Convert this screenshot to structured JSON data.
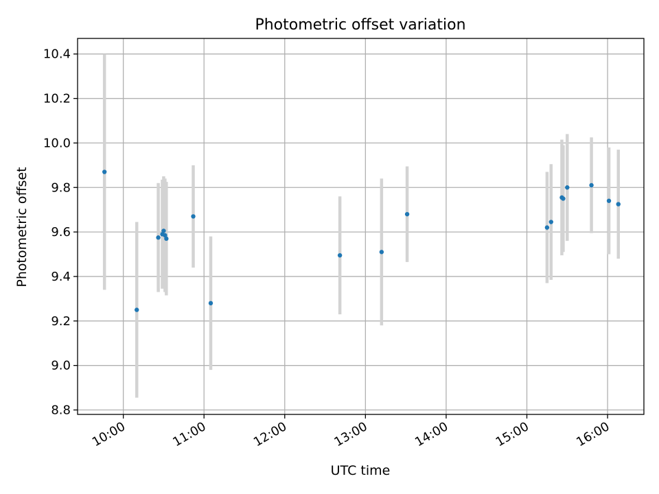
{
  "chart_data": {
    "type": "scatter",
    "title": "Photometric offset variation",
    "xlabel": "UTC time",
    "ylabel": "Photometric offset",
    "xlim": [
      "09:26",
      "16:27"
    ],
    "ylim": [
      8.78,
      10.47
    ],
    "x_ticks": [
      "10:00",
      "11:00",
      "12:00",
      "13:00",
      "14:00",
      "15:00",
      "16:00"
    ],
    "y_ticks": [
      "8.8",
      "9.0",
      "9.2",
      "9.4",
      "9.6",
      "9.8",
      "10.0",
      "10.2",
      "10.4"
    ],
    "grid": true,
    "colors": {
      "points": "#1f77b4",
      "errorbars": "#d3d3d3",
      "grid": "#b0b0b0"
    },
    "points": [
      {
        "time": "09:46",
        "y": 9.87,
        "err": 0.53
      },
      {
        "time": "10:10",
        "y": 9.25,
        "err": 0.395
      },
      {
        "time": "10:26",
        "y": 9.575,
        "err": 0.245
      },
      {
        "time": "10:29",
        "y": 9.59,
        "err": 0.245
      },
      {
        "time": "10:30",
        "y": 9.605,
        "err": 0.245
      },
      {
        "time": "10:31",
        "y": 9.585,
        "err": 0.255
      },
      {
        "time": "10:32",
        "y": 9.57,
        "err": 0.255
      },
      {
        "time": "10:52",
        "y": 9.67,
        "err": 0.23
      },
      {
        "time": "11:05",
        "y": 9.28,
        "err": 0.3
      },
      {
        "time": "12:41",
        "y": 9.495,
        "err": 0.265
      },
      {
        "time": "13:12",
        "y": 9.51,
        "err": 0.33
      },
      {
        "time": "13:31",
        "y": 9.68,
        "err": 0.215
      },
      {
        "time": "15:15",
        "y": 9.62,
        "err": 0.25
      },
      {
        "time": "15:18",
        "y": 9.645,
        "err": 0.26
      },
      {
        "time": "15:26",
        "y": 9.755,
        "err": 0.26
      },
      {
        "time": "15:27",
        "y": 9.75,
        "err": 0.24
      },
      {
        "time": "15:30",
        "y": 9.8,
        "err": 0.24
      },
      {
        "time": "15:48",
        "y": 9.81,
        "err": 0.215
      },
      {
        "time": "16:01",
        "y": 9.74,
        "err": 0.24
      },
      {
        "time": "16:08",
        "y": 9.725,
        "err": 0.245
      }
    ]
  }
}
